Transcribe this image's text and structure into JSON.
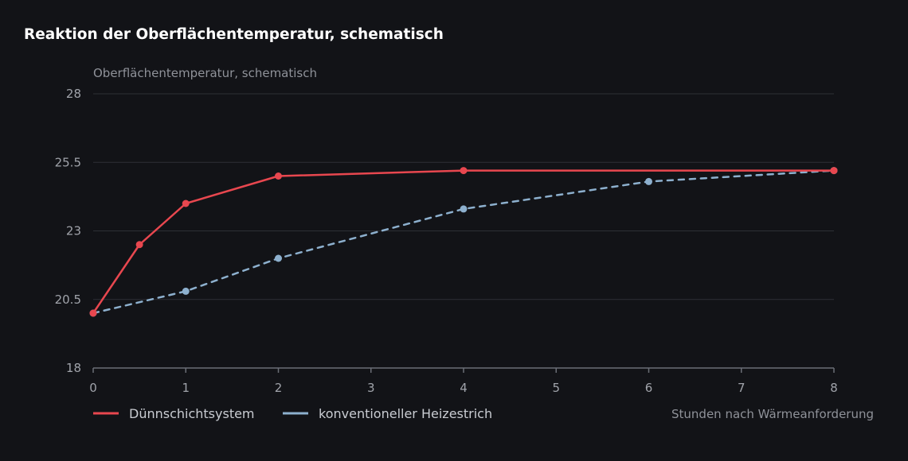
{
  "title": "Reaktion der Oberflächentemperatur, schematisch",
  "chart_data": {
    "type": "line",
    "title": "Reaktion der Oberflächentemperatur, schematisch",
    "ylabel": "Oberflächentemperatur, schematisch",
    "xlabel": "Stunden nach Wärmeanforderung",
    "xlim": [
      0,
      8
    ],
    "ylim": [
      18,
      28
    ],
    "xticks": [
      0,
      1,
      2,
      3,
      4,
      5,
      6,
      7,
      8
    ],
    "yticks": [
      {
        "value": 18,
        "label": "18"
      },
      {
        "value": 20.5,
        "label": "20.5"
      },
      {
        "value": 23,
        "label": "23"
      },
      {
        "value": 25.5,
        "label": "25.5"
      },
      {
        "value": 28,
        "label": "28"
      }
    ],
    "grid": "horizontal",
    "legend_position": "bottom-left",
    "series": [
      {
        "name": "Dünnschichtsystem",
        "color": "#e8474f",
        "style": "solid",
        "x": [
          0,
          0.5,
          1,
          2,
          4,
          8
        ],
        "y": [
          20.0,
          22.5,
          24.0,
          25.0,
          25.2,
          25.2
        ]
      },
      {
        "name": "konventioneller Heizestrich",
        "color": "#8db0ce",
        "style": "dashed",
        "x": [
          0,
          1,
          2,
          4,
          6,
          8
        ],
        "y": [
          20.0,
          20.8,
          22.0,
          23.8,
          24.8,
          25.2
        ]
      }
    ]
  },
  "colors": {
    "background": "#121317",
    "grid": "#2e3036",
    "axis": "#6b6e76",
    "tick_text": "#a0a3aa",
    "label_text": "#8f9299"
  }
}
